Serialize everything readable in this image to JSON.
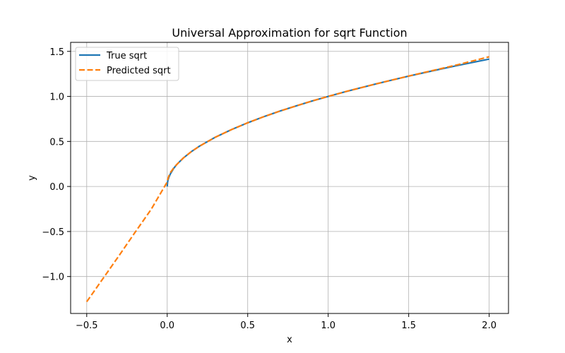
{
  "chart_data": {
    "type": "line",
    "title": "Universal Approximation for sqrt Function",
    "xlabel": "x",
    "ylabel": "y",
    "xlim": [
      -0.6,
      2.12
    ],
    "ylim": [
      -1.41,
      1.6
    ],
    "xticks": [
      -0.5,
      0.0,
      0.5,
      1.0,
      1.5,
      2.0
    ],
    "xtick_labels": [
      "−0.5",
      "0.0",
      "0.5",
      "1.0",
      "1.5",
      "2.0"
    ],
    "yticks": [
      -1.0,
      -0.5,
      0.0,
      0.5,
      1.0,
      1.5
    ],
    "ytick_labels": [
      "−1.0",
      "−0.5",
      "0.0",
      "0.5",
      "1.0",
      "1.5"
    ],
    "grid": true,
    "legend": "top-left",
    "series": [
      {
        "name": "True sqrt",
        "color": "#1f77b4",
        "style": "solid",
        "x": [
          0.0,
          0.002,
          0.005,
          0.01,
          0.02,
          0.04,
          0.06,
          0.1,
          0.15,
          0.2,
          0.3,
          0.4,
          0.5,
          0.6,
          0.7,
          0.8,
          0.9,
          1.0,
          1.1,
          1.2,
          1.3,
          1.4,
          1.5,
          1.6,
          1.7,
          1.8,
          1.9,
          2.0
        ],
        "y": [
          0.0,
          0.045,
          0.071,
          0.1,
          0.141,
          0.2,
          0.245,
          0.316,
          0.387,
          0.447,
          0.548,
          0.632,
          0.707,
          0.775,
          0.837,
          0.894,
          0.949,
          1.0,
          1.049,
          1.095,
          1.14,
          1.183,
          1.225,
          1.265,
          1.304,
          1.342,
          1.378,
          1.414
        ]
      },
      {
        "name": "Predicted sqrt",
        "color": "#ff7f0e",
        "style": "dashed",
        "x": [
          -0.5,
          -0.4,
          -0.3,
          -0.2,
          -0.1,
          0.0,
          0.005,
          0.01,
          0.02,
          0.04,
          0.06,
          0.1,
          0.15,
          0.2,
          0.3,
          0.4,
          0.5,
          0.6,
          0.7,
          0.8,
          0.9,
          1.0,
          1.1,
          1.2,
          1.3,
          1.4,
          1.5,
          1.6,
          1.7,
          1.8,
          1.9,
          2.0
        ],
        "y": [
          -1.28,
          -1.025,
          -0.77,
          -0.51,
          -0.255,
          0.05,
          0.09,
          0.115,
          0.155,
          0.205,
          0.245,
          0.316,
          0.387,
          0.447,
          0.548,
          0.632,
          0.707,
          0.775,
          0.837,
          0.894,
          0.949,
          1.0,
          1.049,
          1.095,
          1.14,
          1.183,
          1.226,
          1.267,
          1.308,
          1.35,
          1.395,
          1.44
        ]
      }
    ]
  }
}
